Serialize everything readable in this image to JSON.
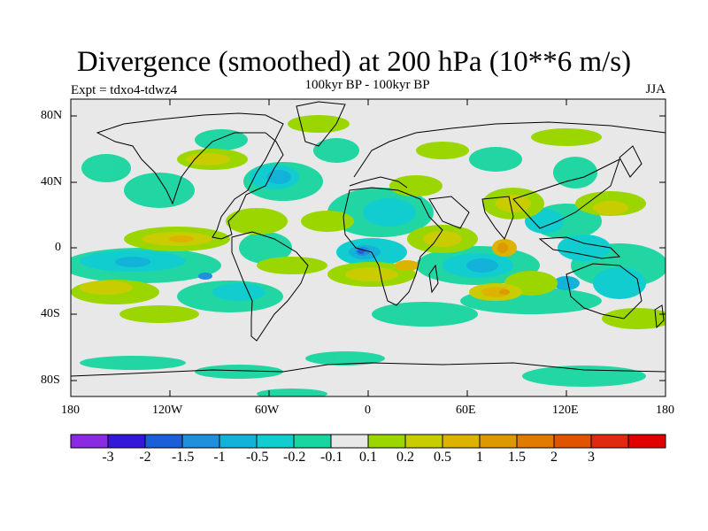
{
  "header": {
    "title": "Divergence (smoothed) at 200 hPa (10**6 m/s)",
    "experiment": "Expt = tdxo4-tdwz4",
    "period": "100kyr BP - 100kyr BP",
    "season": "JJA"
  },
  "map": {
    "projection": "cylindrical equidistant",
    "lat_labels": [
      "80N",
      "40N",
      "0",
      "40S",
      "80S"
    ],
    "lon_labels": [
      "180",
      "120W",
      "60W",
      "0",
      "60E",
      "120E",
      "180"
    ],
    "background_color": "#e8e8e8",
    "coastline_color": "#000000"
  },
  "colorbar": {
    "colors": [
      "#8a2be2",
      "#3318d8",
      "#1a5fd8",
      "#1e90dc",
      "#13b2d8",
      "#11cdd0",
      "#18d6a0",
      "#e8e8e8",
      "#9cd600",
      "#c8cc00",
      "#dcb400",
      "#dc9a00",
      "#e07a00",
      "#e05400",
      "#e02a10",
      "#e00000"
    ],
    "labels": [
      "-3",
      "-2",
      "-1.5",
      "-1",
      "-0.5",
      "-0.2",
      "-0.1",
      "0.1",
      "0.2",
      "0.5",
      "1",
      "1.5",
      "2",
      "3"
    ]
  }
}
